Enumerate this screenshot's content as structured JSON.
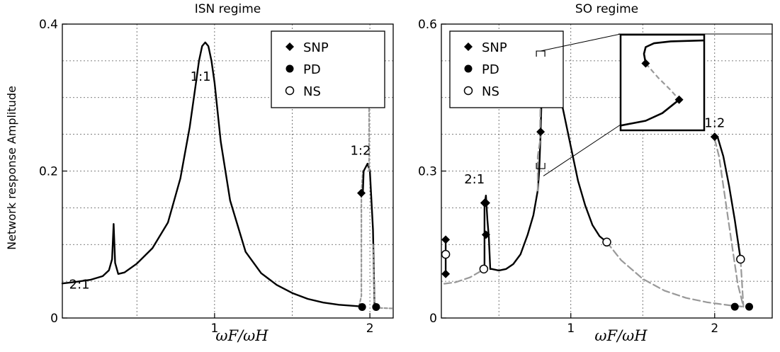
{
  "ylabel": "Network response Amplitude",
  "chart_data": [
    {
      "type": "line",
      "title": "ISN regime",
      "xlabel": "ωF/ωH",
      "xlim": [
        0.02,
        2.15
      ],
      "ylim": [
        0,
        0.4
      ],
      "xticks": [
        1,
        2
      ],
      "xtick_labels": [
        "1",
        "2"
      ],
      "yticks": [
        0,
        0.2,
        0.4
      ],
      "ytick_labels": [
        "0",
        "0.2",
        "0.4"
      ],
      "grid": true,
      "legend": {
        "position": "top-right",
        "entries": [
          {
            "label": "SNP",
            "marker": "diamond-filled"
          },
          {
            "label": "PD",
            "marker": "circle-filled"
          },
          {
            "label": "NS",
            "marker": "circle-open"
          }
        ]
      },
      "annotations": [
        {
          "text": "2:1",
          "x": 0.13,
          "y": 0.04
        },
        {
          "text": "1:1",
          "x": 0.91,
          "y": 0.323
        },
        {
          "text": "1:2",
          "x": 1.94,
          "y": 0.222
        }
      ],
      "series": [
        {
          "style": "stable",
          "x": [
            0.02,
            0.1,
            0.2,
            0.28,
            0.32,
            0.34,
            0.35,
            0.36,
            0.38,
            0.42,
            0.5,
            0.6,
            0.7,
            0.78,
            0.84,
            0.88,
            0.9,
            0.92,
            0.94,
            0.96,
            0.98,
            1.0,
            1.04,
            1.1,
            1.2,
            1.3,
            1.4,
            1.5,
            1.6,
            1.7,
            1.8,
            1.93
          ],
          "y": [
            0.047,
            0.049,
            0.052,
            0.057,
            0.065,
            0.08,
            0.128,
            0.075,
            0.06,
            0.062,
            0.074,
            0.095,
            0.13,
            0.19,
            0.26,
            0.32,
            0.35,
            0.37,
            0.375,
            0.37,
            0.35,
            0.32,
            0.24,
            0.16,
            0.09,
            0.061,
            0.045,
            0.034,
            0.026,
            0.021,
            0.018,
            0.016
          ]
        },
        {
          "style": "unstable",
          "x": [
            1.93,
            1.945,
            1.945,
            1.955
          ],
          "y": [
            0.016,
            0.03,
            0.17,
            0.2
          ]
        },
        {
          "style": "stable",
          "x": [
            1.955,
            1.96,
            1.985,
            2.0,
            2.02,
            2.03
          ],
          "y": [
            0.17,
            0.2,
            0.21,
            0.2,
            0.12,
            0.014
          ]
        },
        {
          "style": "unstable",
          "x": [
            2.03,
            2.15
          ],
          "y": [
            0.014,
            0.013
          ]
        },
        {
          "style": "unstable",
          "x": [
            1.995,
            1.995
          ],
          "y": [
            0.2,
            0.3
          ]
        },
        {
          "style": "unstable",
          "x": [
            2.02,
            2.03
          ],
          "y": [
            0.1,
            0.016
          ]
        }
      ],
      "markers": [
        {
          "type": "SNP",
          "x": 1.945,
          "y": 0.17
        },
        {
          "type": "PD",
          "x": 1.95,
          "y": 0.015
        },
        {
          "type": "PD",
          "x": 2.04,
          "y": 0.015
        }
      ]
    },
    {
      "type": "line",
      "title": "SO regime",
      "xlabel": "ωF/ωH",
      "xlim": [
        0.1,
        2.4
      ],
      "ylim": [
        0,
        0.6
      ],
      "xticks": [
        1,
        2
      ],
      "xtick_labels": [
        "1",
        "2"
      ],
      "yticks": [
        0,
        0.3,
        0.6
      ],
      "ytick_labels": [
        "0",
        "0.3",
        "0.6"
      ],
      "grid": true,
      "legend": {
        "position": "top-left",
        "entries": [
          {
            "label": "SNP",
            "marker": "diamond-filled"
          },
          {
            "label": "PD",
            "marker": "circle-filled"
          },
          {
            "label": "NS",
            "marker": "circle-open"
          }
        ]
      },
      "annotations": [
        {
          "text": "2:1",
          "x": 0.33,
          "y": 0.275
        },
        {
          "text": "1:2",
          "x": 2.0,
          "y": 0.39
        }
      ],
      "series": [
        {
          "style": "unstable",
          "x": [
            0.12,
            0.2,
            0.3,
            0.37,
            0.4
          ],
          "y": [
            0.07,
            0.073,
            0.083,
            0.095,
            0.105
          ]
        },
        {
          "style": "stable",
          "x": [
            0.13,
            0.13
          ],
          "y": [
            0.09,
            0.16
          ]
        },
        {
          "style": "stable",
          "x": [
            0.4,
            0.4,
            0.41,
            0.42,
            0.43,
            0.44,
            0.45
          ],
          "y": [
            0.1,
            0.23,
            0.25,
            0.2,
            0.165,
            0.1,
            0.1
          ]
        },
        {
          "style": "stable",
          "x": [
            0.45,
            0.5,
            0.55,
            0.6,
            0.65,
            0.7,
            0.74,
            0.77,
            0.78,
            0.79,
            0.8,
            0.82,
            0.86,
            0.9,
            0.95,
            1.0,
            1.05,
            1.1,
            1.15,
            1.2,
            1.25
          ],
          "y": [
            0.1,
            0.097,
            0.1,
            0.11,
            0.13,
            0.17,
            0.21,
            0.26,
            0.3,
            0.38,
            0.48,
            0.535,
            0.53,
            0.49,
            0.42,
            0.35,
            0.28,
            0.23,
            0.19,
            0.167,
            0.155
          ]
        },
        {
          "style": "unstable",
          "x": [
            0.77,
            0.77,
            0.785,
            0.79
          ],
          "y": [
            0.26,
            0.33,
            0.36,
            0.47
          ]
        },
        {
          "style": "unstable",
          "x": [
            1.25,
            1.35,
            1.5,
            1.65,
            1.8,
            1.95,
            2.1,
            2.2
          ],
          "y": [
            0.155,
            0.118,
            0.08,
            0.056,
            0.041,
            0.032,
            0.026,
            0.023
          ]
        },
        {
          "style": "stable",
          "x": [
            2.0,
            2.02,
            2.06,
            2.1,
            2.14,
            2.17,
            2.18
          ],
          "y": [
            0.37,
            0.37,
            0.33,
            0.27,
            0.2,
            0.14,
            0.12
          ]
        },
        {
          "style": "unstable",
          "x": [
            2.0,
            2.03,
            2.07,
            2.12,
            2.16,
            2.2
          ],
          "y": [
            0.365,
            0.33,
            0.25,
            0.15,
            0.07,
            0.023
          ]
        },
        {
          "style": "unstable",
          "x": [
            2.18,
            2.2
          ],
          "y": [
            0.12,
            0.023
          ]
        }
      ],
      "markers": [
        {
          "type": "SNP",
          "x": 0.13,
          "y": 0.16
        },
        {
          "type": "SNP",
          "x": 0.13,
          "y": 0.09
        },
        {
          "type": "NS",
          "x": 0.13,
          "y": 0.13
        },
        {
          "type": "NS",
          "x": 0.395,
          "y": 0.1
        },
        {
          "type": "SNP",
          "x": 0.4,
          "y": 0.235
        },
        {
          "type": "SNP",
          "x": 0.41,
          "y": 0.235
        },
        {
          "type": "SNP",
          "x": 0.41,
          "y": 0.17
        },
        {
          "type": "SNP",
          "x": 0.79,
          "y": 0.48
        },
        {
          "type": "SNP",
          "x": 0.79,
          "y": 0.38
        },
        {
          "type": "NS",
          "x": 1.25,
          "y": 0.155
        },
        {
          "type": "SNP",
          "x": 2.0,
          "y": 0.37
        },
        {
          "type": "NS",
          "x": 2.18,
          "y": 0.12
        },
        {
          "type": "PD",
          "x": 2.14,
          "y": 0.023
        },
        {
          "type": "PD",
          "x": 2.24,
          "y": 0.023
        }
      ],
      "inset": {
        "series": [
          {
            "style": "stable",
            "x": [
              0.3,
              0.28,
              0.3,
              0.4,
              0.6,
              1.0
            ],
            "y": [
              0.7,
              0.8,
              0.87,
              0.91,
              0.93,
              0.94
            ]
          },
          {
            "style": "unstable",
            "x": [
              0.3,
              0.45,
              0.6,
              0.7
            ],
            "y": [
              0.7,
              0.55,
              0.42,
              0.32
            ]
          },
          {
            "style": "stable",
            "x": [
              0.0,
              0.3,
              0.5,
              0.7
            ],
            "y": [
              0.05,
              0.1,
              0.18,
              0.32
            ]
          }
        ],
        "markers": [
          {
            "type": "SNP",
            "x": 0.3,
            "y": 0.7
          },
          {
            "type": "SNP",
            "x": 0.7,
            "y": 0.32
          }
        ]
      }
    }
  ]
}
